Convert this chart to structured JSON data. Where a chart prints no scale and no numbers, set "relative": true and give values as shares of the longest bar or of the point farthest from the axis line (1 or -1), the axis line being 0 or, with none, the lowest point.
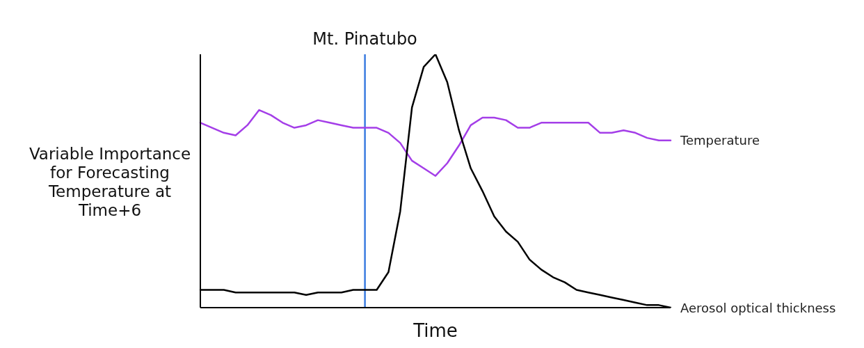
{
  "chart_data": {
    "type": "line",
    "relative": true,
    "xlabel": "Time",
    "ylabel": "Variable Importance for Forecasting Temperature at Time+6",
    "legend": false,
    "grid": false,
    "marker": "none",
    "line_style": "solid",
    "categories": [
      null,
      null,
      null,
      null,
      null,
      null,
      null,
      null,
      null,
      null,
      null,
      null,
      null,
      null,
      null,
      null,
      null,
      null,
      null,
      null,
      null,
      null,
      null,
      null,
      null,
      null,
      null,
      null,
      null,
      null,
      null,
      null,
      null,
      null,
      null,
      null,
      null,
      null,
      null,
      null,
      null
    ],
    "series": [
      {
        "name": "Temperature",
        "color": "#a43ee8",
        "values": [
          0.73,
          0.71,
          0.69,
          0.68,
          0.72,
          0.78,
          0.76,
          0.73,
          0.71,
          0.72,
          0.74,
          0.73,
          0.72,
          0.71,
          0.71,
          0.71,
          0.69,
          0.65,
          0.58,
          0.55,
          0.52,
          0.57,
          0.64,
          0.72,
          0.75,
          0.75,
          0.74,
          0.71,
          0.71,
          0.73,
          0.73,
          0.73,
          0.73,
          0.73,
          0.69,
          0.69,
          0.7,
          0.69,
          0.67,
          0.66,
          0.66
        ]
      },
      {
        "name": "Aerosol optical thickness",
        "color": "#000000",
        "values": [
          0.07,
          0.07,
          0.07,
          0.06,
          0.06,
          0.06,
          0.06,
          0.06,
          0.06,
          0.05,
          0.06,
          0.06,
          0.06,
          0.07,
          0.07,
          0.07,
          0.14,
          0.38,
          0.79,
          0.95,
          1,
          0.89,
          0.7,
          0.55,
          0.46,
          0.36,
          0.3,
          0.26,
          0.19,
          0.15,
          0.12,
          0.1,
          0.07,
          0.06,
          0.05,
          0.04,
          0.03,
          0.02,
          0.01,
          0.01,
          0
        ]
      }
    ],
    "annotations": [
      "Mt. Pinatubo"
    ]
  }
}
